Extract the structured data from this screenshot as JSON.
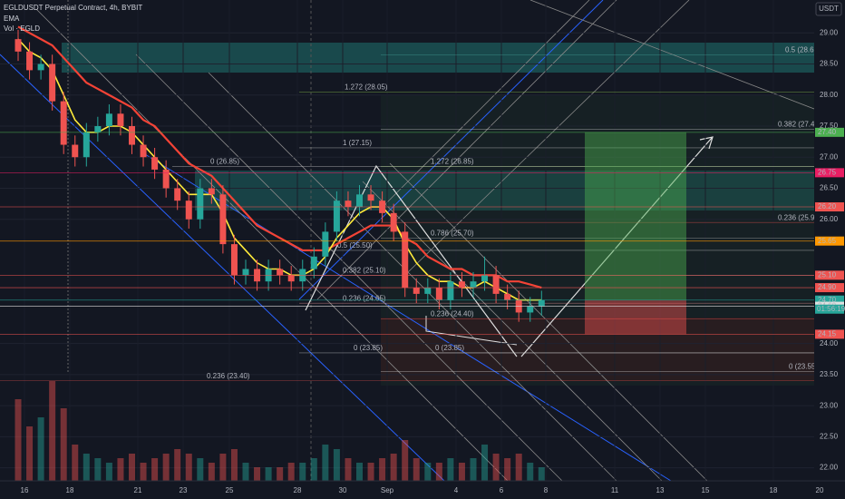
{
  "chart_data": {
    "type": "candlestick",
    "title": "EGLDUSDT Perpetual Contract, 4h, BYBIT",
    "indicators": [
      "EMA",
      "Vol · EGLD"
    ],
    "y_axis_label": "USDT",
    "categories": [
      "16",
      "18",
      "21",
      "23",
      "25",
      "28",
      "30",
      "Sep",
      "4",
      "6",
      "8",
      "11",
      "13",
      "15",
      "18",
      "20"
    ],
    "candles": {
      "open": [
        28.9,
        28.7,
        28.4,
        28.5,
        27.9,
        27.2,
        27.0,
        27.4,
        27.5,
        27.7,
        27.5,
        27.2,
        27.0,
        26.8,
        26.5,
        26.3,
        26.0,
        26.5,
        26.4,
        25.6,
        25.1,
        25.2,
        25.0,
        25.2,
        25.1,
        25.0,
        25.2,
        25.4,
        25.8,
        26.3,
        26.2,
        26.4,
        26.3,
        26.1,
        25.8,
        24.9,
        24.8,
        24.9,
        24.7,
        25.0,
        24.9,
        25.0,
        25.1,
        24.8,
        24.7,
        24.5,
        24.6
      ],
      "high": [
        29.05,
        28.85,
        28.65,
        28.65,
        28.05,
        27.35,
        27.55,
        27.65,
        27.85,
        27.85,
        27.65,
        27.35,
        27.15,
        26.95,
        26.65,
        26.45,
        26.65,
        26.65,
        26.55,
        25.75,
        25.35,
        25.35,
        25.35,
        25.35,
        25.25,
        25.35,
        25.55,
        25.95,
        26.45,
        26.45,
        26.55,
        26.55,
        26.45,
        26.25,
        25.95,
        25.05,
        25.05,
        25.05,
        25.15,
        25.15,
        25.15,
        25.4,
        25.25,
        24.95,
        24.85,
        24.75,
        24.85
      ],
      "low": [
        28.55,
        28.25,
        28.25,
        27.75,
        27.05,
        26.85,
        26.85,
        27.25,
        27.35,
        27.35,
        27.05,
        26.85,
        26.65,
        26.35,
        26.15,
        25.85,
        25.85,
        26.25,
        25.45,
        24.95,
        24.95,
        24.85,
        24.85,
        24.95,
        24.85,
        24.85,
        25.05,
        25.25,
        25.65,
        26.05,
        26.05,
        26.15,
        25.95,
        25.65,
        24.75,
        24.65,
        24.65,
        24.55,
        24.55,
        24.75,
        24.75,
        24.85,
        24.65,
        24.55,
        24.35,
        24.35,
        24.45
      ],
      "close": [
        28.7,
        28.4,
        28.5,
        27.9,
        27.2,
        27.0,
        27.4,
        27.5,
        27.7,
        27.5,
        27.2,
        27.0,
        26.8,
        26.5,
        26.3,
        26.0,
        26.5,
        26.4,
        25.6,
        25.1,
        25.2,
        25.0,
        25.2,
        25.1,
        25.0,
        25.2,
        25.4,
        25.8,
        26.3,
        26.2,
        26.4,
        26.3,
        26.1,
        25.8,
        24.9,
        24.8,
        24.9,
        24.7,
        25.0,
        24.9,
        25.0,
        25.1,
        24.8,
        24.7,
        24.5,
        24.6,
        24.7
      ]
    },
    "up_color": "#26a69a",
    "down_color": "#ef5350",
    "volume": [
      90,
      60,
      70,
      110,
      80,
      40,
      30,
      25,
      20,
      25,
      30,
      20,
      25,
      30,
      35,
      30,
      25,
      20,
      30,
      35,
      20,
      15,
      15,
      15,
      20,
      20,
      25,
      40,
      35,
      25,
      20,
      20,
      25,
      30,
      45,
      25,
      20,
      20,
      25,
      20,
      25,
      40,
      30,
      25,
      30,
      20,
      15
    ],
    "ema_lines": [
      {
        "color": "#f44336",
        "values": [
          29.1,
          29.0,
          28.9,
          28.8,
          28.6,
          28.4,
          28.2,
          28.1,
          28.0,
          27.9,
          27.8,
          27.6,
          27.5,
          27.3,
          27.1,
          26.9,
          26.8,
          26.7,
          26.5,
          26.3,
          26.1,
          25.9,
          25.8,
          25.7,
          25.6,
          25.5,
          25.5,
          25.5,
          25.6,
          25.7,
          25.8,
          25.9,
          25.9,
          25.9,
          25.7,
          25.6,
          25.4,
          25.3,
          25.2,
          25.2,
          25.1,
          25.1,
          25.1,
          25.0,
          25.0,
          24.95,
          24.9
        ]
      },
      {
        "color": "#ffeb3b",
        "values": [
          28.9,
          28.7,
          28.6,
          28.4,
          28.0,
          27.6,
          27.4,
          27.4,
          27.5,
          27.5,
          27.4,
          27.2,
          27.0,
          26.8,
          26.6,
          26.4,
          26.4,
          26.4,
          26.1,
          25.7,
          25.5,
          25.3,
          25.2,
          25.2,
          25.1,
          25.1,
          25.2,
          25.4,
          25.7,
          25.9,
          26.1,
          26.2,
          26.2,
          26.0,
          25.6,
          25.3,
          25.1,
          25.0,
          25.0,
          24.9,
          24.9,
          25.0,
          24.9,
          24.8,
          24.7,
          24.7,
          24.7
        ]
      }
    ],
    "ylim": [
      21.79,
      29.53
    ],
    "yticks": [
      {
        "value": 22,
        "label": "22.00"
      },
      {
        "value": 22.5,
        "label": "22.50"
      },
      {
        "value": 23,
        "label": "23.00"
      },
      {
        "value": 23.5,
        "label": "23.50"
      },
      {
        "value": 24,
        "label": "24.00"
      },
      {
        "value": 26,
        "label": "26.00"
      },
      {
        "value": 26.5,
        "label": "26.50"
      },
      {
        "value": 27,
        "label": "27.00"
      },
      {
        "value": 27.5,
        "label": "27.50"
      },
      {
        "value": 28,
        "label": "28.00"
      },
      {
        "value": 28.5,
        "label": "28.50"
      },
      {
        "value": 29,
        "label": "29.00"
      }
    ],
    "price_tags": [
      {
        "value": 27.4,
        "label": "27.40",
        "color": "#4caf50"
      },
      {
        "value": 26.75,
        "label": "26.75",
        "color": "#e91e63"
      },
      {
        "value": 26.2,
        "label": "26.20",
        "color": "#ef5350"
      },
      {
        "value": 25.65,
        "label": "25.65",
        "color": "#ff9800"
      },
      {
        "value": 25.1,
        "label": "25.10",
        "color": "#ef5350"
      },
      {
        "value": 24.9,
        "label": "24.90",
        "color": "#ef5350"
      },
      {
        "value": 24.7,
        "label": "24.70",
        "color": "#26a69a"
      },
      {
        "value": 24.6,
        "label": "24.60",
        "color": "#e0e0e0"
      },
      {
        "value": 24.15,
        "label": "24.15",
        "color": "#ef5350"
      }
    ],
    "countdown": "01:56:19",
    "fib_levels": [
      {
        "label": "0.5 (28.65)",
        "value": 28.65,
        "color": "#4db6ac"
      },
      {
        "label": "1.272 (28.05)",
        "value": 28.05,
        "color": "#8bc34a"
      },
      {
        "label": "0.382 (27.45)",
        "value": 27.45,
        "color": "#cccccc"
      },
      {
        "label": "1 (27.15)",
        "value": 27.15,
        "color": "#cccccc"
      },
      {
        "label": "1.272 (26.85)",
        "value": 26.85,
        "color": "#8bc34a"
      },
      {
        "label": "0 (26.85)",
        "value": 26.85,
        "color": "#cccccc"
      },
      {
        "label": "0.236 (25.95)",
        "value": 25.95,
        "color": "#ef5350"
      },
      {
        "label": "0.786 (25.70)",
        "value": 25.7,
        "color": "#cccccc"
      },
      {
        "label": "0.5 (25.50)",
        "value": 25.5,
        "color": "#cccccc"
      },
      {
        "label": "0.382 (25.10)",
        "value": 25.1,
        "color": "#cccccc"
      },
      {
        "label": "0.236 (24.65)",
        "value": 24.65,
        "color": "#ef9a9a"
      },
      {
        "label": "0.236 (24.40)",
        "value": 24.4,
        "color": "#ef5350"
      },
      {
        "label": "0 (23.85)",
        "value": 23.85,
        "color": "#cccccc"
      },
      {
        "label": "0 (23.85)",
        "value": 23.85,
        "color": "#cccccc"
      },
      {
        "label": "0 (23.55)",
        "value": 23.55,
        "color": "#cccccc"
      },
      {
        "label": "0.236 (23.40)",
        "value": 23.4,
        "color": "#ef5350"
      }
    ],
    "grid": true
  }
}
